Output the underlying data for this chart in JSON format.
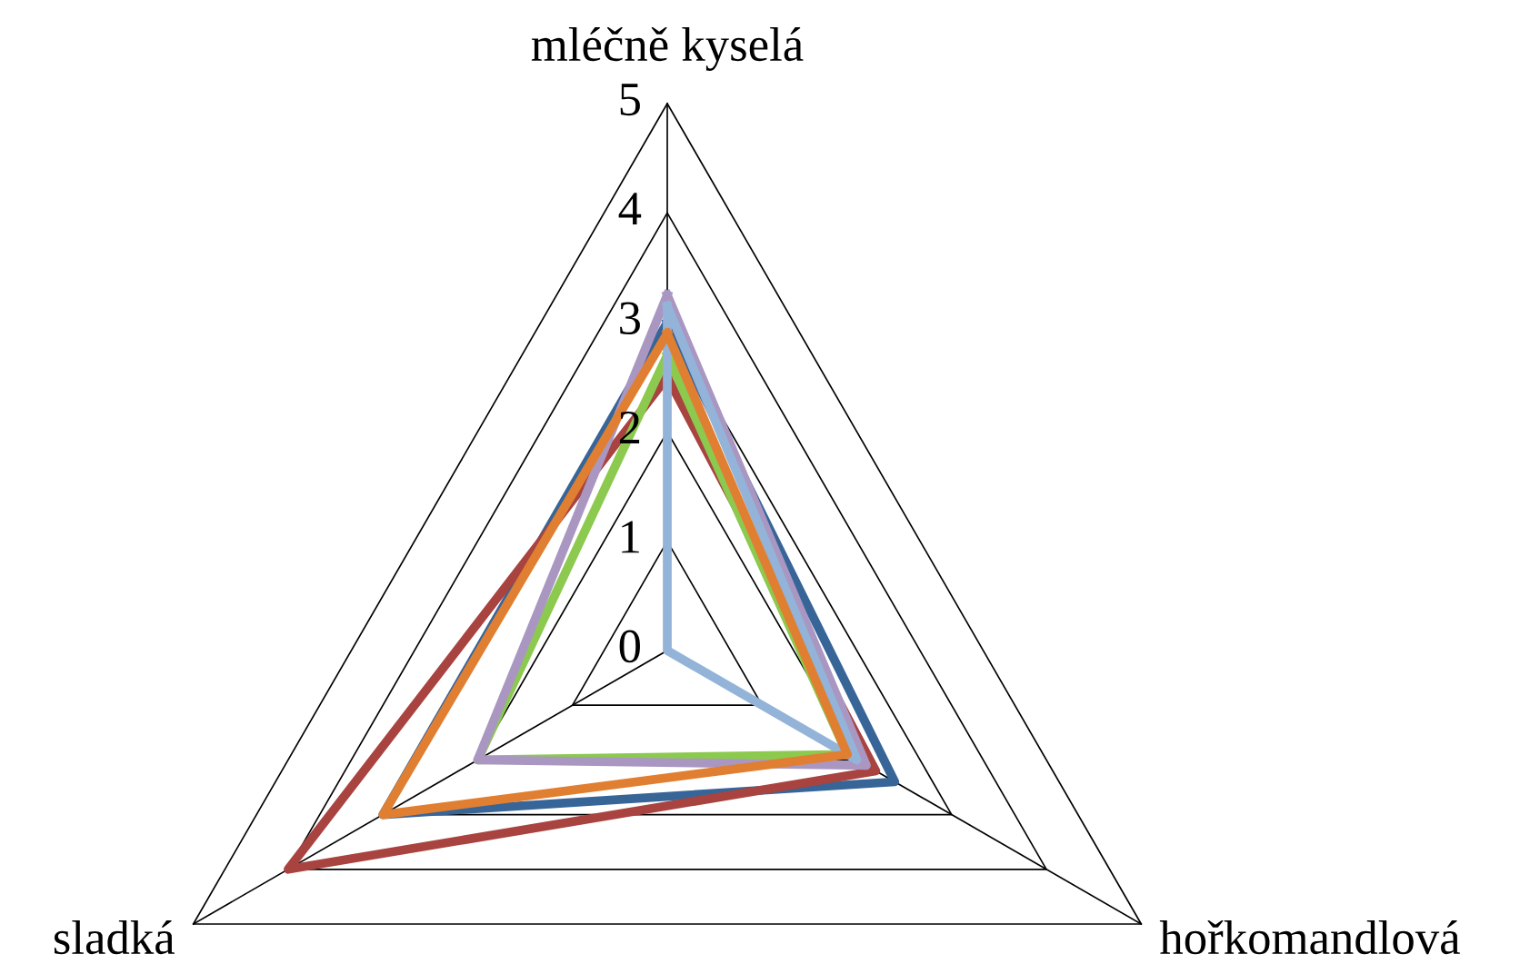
{
  "chart_data": {
    "type": "radar",
    "categories": [
      "mléčně kyselá",
      "hořkomandlová",
      "sladká"
    ],
    "ylim": [
      0,
      5
    ],
    "yticks": [
      {
        "value": 0,
        "label": "0"
      },
      1,
      2,
      3,
      4,
      5
    ],
    "grid": true,
    "series": [
      {
        "color": "#386598",
        "values": [
          3.0,
          2.4,
          3.0
        ]
      },
      {
        "color": "#a84340",
        "values": [
          2.5,
          2.2,
          4.0
        ]
      },
      {
        "color": "#8cc94f",
        "values": [
          2.7,
          1.9,
          2.0
        ]
      },
      {
        "color": "#a997c2",
        "values": [
          3.25,
          2.1,
          2.0
        ]
      },
      {
        "color": "#93b3d8",
        "values": [
          3.15,
          2.0,
          0
        ]
      },
      {
        "color": "#e07f31",
        "values": [
          2.9,
          1.9,
          3.0
        ]
      }
    ]
  }
}
